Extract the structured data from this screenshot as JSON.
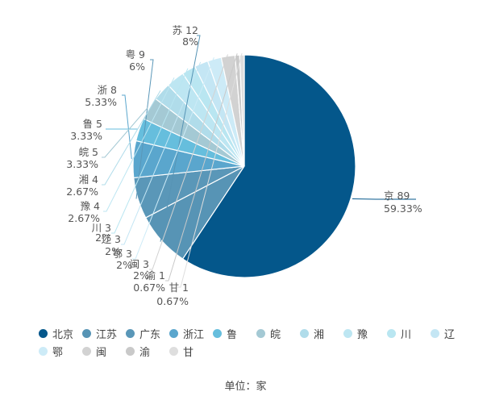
{
  "chart_data": {
    "type": "pie",
    "slices": [
      {
        "name": "京",
        "value": 89,
        "pct": "59.33%",
        "legend": "北京",
        "color": "#04578b"
      },
      {
        "name": "苏",
        "value": 12,
        "pct": "8%",
        "legend": "江苏",
        "color": "#5794b5"
      },
      {
        "name": "粤",
        "value": 9,
        "pct": "6%",
        "legend": "广东",
        "color": "#5a97b8"
      },
      {
        "name": "浙",
        "value": 8,
        "pct": "5.33%",
        "legend": "浙江",
        "color": "#5aa6cd"
      },
      {
        "name": "鲁",
        "value": 5,
        "pct": "3.33%",
        "legend": "鲁",
        "color": "#66bedd"
      },
      {
        "name": "皖",
        "value": 5,
        "pct": "3.33%",
        "legend": "皖",
        "color": "#a4c9d4"
      },
      {
        "name": "湘",
        "value": 4,
        "pct": "2.67%",
        "legend": "湘",
        "color": "#b0dcea"
      },
      {
        "name": "豫",
        "value": 4,
        "pct": "2.67%",
        "legend": "豫",
        "color": "#bde6f2"
      },
      {
        "name": "川",
        "value": 3,
        "pct": "2%",
        "legend": "川",
        "color": "#b9e6f1"
      },
      {
        "name": "辽",
        "value": 3,
        "pct": "2%",
        "legend": "辽",
        "color": "#c4e6f4"
      },
      {
        "name": "鄂",
        "value": 3,
        "pct": "2%",
        "legend": "鄂",
        "color": "#cdebf7"
      },
      {
        "name": "闽",
        "value": 3,
        "pct": "2%",
        "legend": "闽",
        "color": "#d2d2d2"
      },
      {
        "name": "渝",
        "value": 1,
        "pct": "0.67%",
        "legend": "渝",
        "color": "#c9c9c9"
      },
      {
        "name": "甘",
        "value": 1,
        "pct": "0.67%",
        "legend": "甘",
        "color": "#dedede"
      }
    ]
  },
  "unit_note": "单位：家"
}
